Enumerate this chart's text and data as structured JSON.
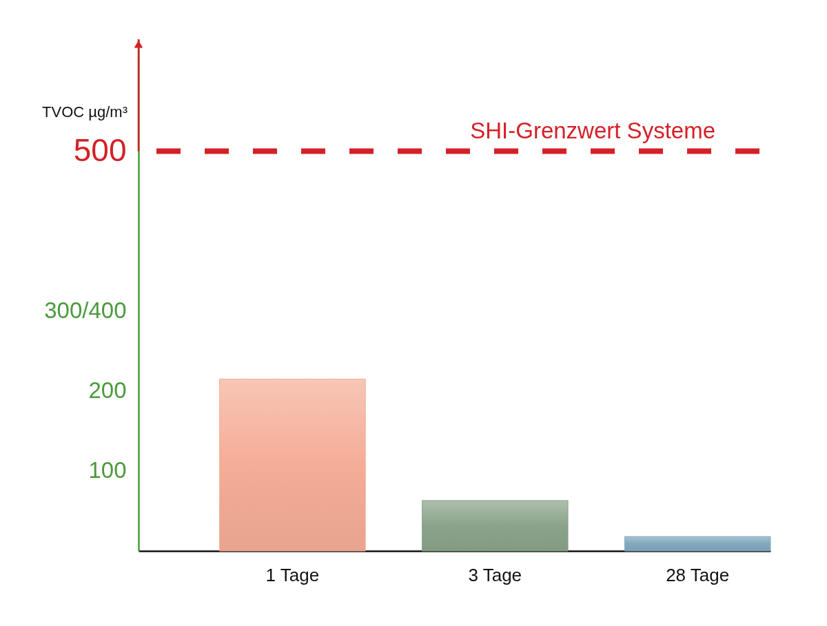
{
  "chart_data": {
    "type": "bar",
    "ylabel": "TVOC µg/m³",
    "categories": [
      "1 Tage",
      "3 Tage",
      "28 Tage"
    ],
    "values": [
      215,
      63,
      18
    ],
    "colors": [
      "#f4ad96",
      "#8aa38a",
      "#82a8bf"
    ],
    "ylim": [
      0,
      640
    ],
    "yticks": [
      100,
      200,
      {
        "value": 300,
        "label": "300/400"
      },
      500
    ],
    "ref_lines": [
      {
        "axis": "y",
        "value": 500,
        "label": "SHI-Grenzwert Systeme",
        "color": "#d42127",
        "line_style": "dashed"
      }
    ],
    "grid": false
  }
}
